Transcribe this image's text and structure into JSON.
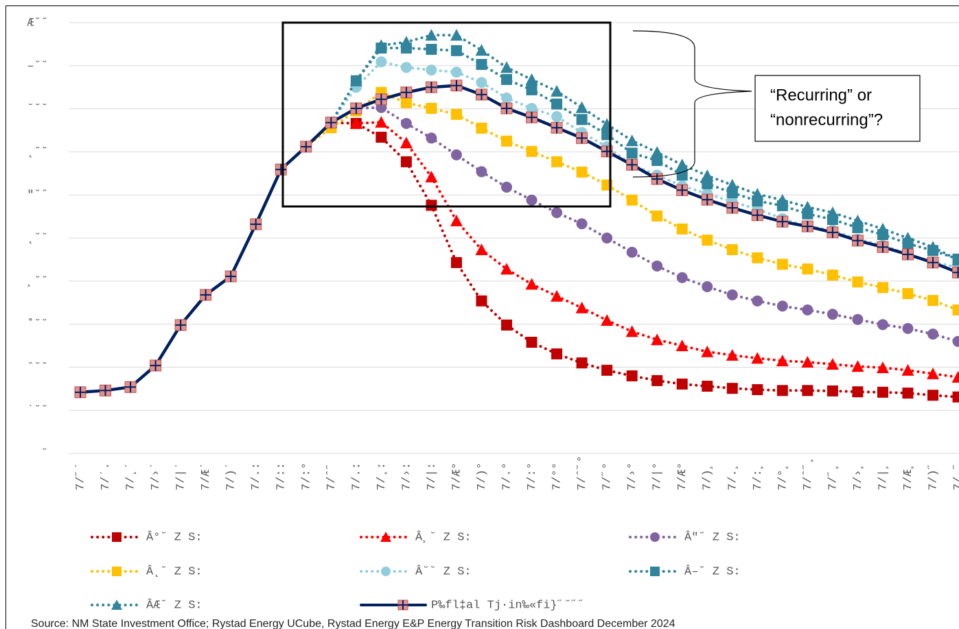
{
  "chart_data": {
    "type": "line",
    "annotation": [
      "“Recurring” or",
      "“nonrecurring”?"
    ],
    "source": "Source: NM State Investment Office; Rystad Energy UCube, Rystad Energy E&P Energy Transition Risk Dashboard December 2024",
    "categories": [
      "7/˝˙",
      "7/˙.",
      "7/˛˙",
      "7/›˙",
      "7/|˙",
      "7/Æ˙",
      "7/)˙",
      "7/.:",
      "7/::",
      "7/:°",
      "7/ˆ˝",
      "7/.:",
      "7/˛:",
      "7/›:",
      "7/|:",
      "7/Æ°",
      "7/)°",
      "7/.°",
      "7/:°",
      "7/°°",
      "7/ˆ˝°",
      "7/˝°",
      "7/›°",
      "7/|°",
      "7/Æ°",
      "7/)¸",
      "7/.¸",
      "7/:¸",
      "7/°¸",
      "7/ˆ˝¸",
      "7/˝¸",
      "7/›¸",
      "7/|¸",
      "7/Æ¸",
      "7/)˝",
      "7/.˝"
    ],
    "ylim": [
      0,
      1000
    ],
    "yticks": [
      {
        "value": 0,
        "label": "˘"
      },
      {
        "value": 100,
        "label": "˙˘˘"
      },
      {
        "value": 200,
        "label": "ˆ˘˘"
      },
      {
        "value": 300,
        "label": "˚˘˘"
      },
      {
        "value": 400,
        "label": "¸˘˘"
      },
      {
        "value": 500,
        "label": "˛˘˘"
      },
      {
        "value": 600,
        "label": "″˘˘"
      },
      {
        "value": 700,
        "label": "˛˘˘"
      },
      {
        "value": 800,
        "label": "˘˘˘"
      },
      {
        "value": 900,
        "label": "–˘˘"
      },
      {
        "value": 1000,
        "label": "Æ˘˘"
      }
    ],
    "grid": true,
    "series": [
      {
        "name": "Â°˘ Z S:",
        "color": "#c00000",
        "marker": "square",
        "dotted": true,
        "values": [
          null,
          null,
          null,
          null,
          null,
          null,
          null,
          null,
          null,
          null,
          768,
          766,
          734,
          677,
          576,
          443,
          354,
          298,
          258,
          231,
          210,
          193,
          180,
          169,
          161,
          156,
          151,
          148,
          146,
          146,
          145,
          143,
          142,
          140,
          135,
          131
        ]
      },
      {
        "name": "Â¸˘ Z S:",
        "color": "#ff0000",
        "marker": "triangle",
        "dotted": true,
        "values": [
          null,
          null,
          null,
          null,
          null,
          null,
          null,
          null,
          null,
          null,
          null,
          766,
          769,
          721,
          642,
          540,
          473,
          428,
          393,
          365,
          338,
          309,
          283,
          264,
          250,
          236,
          228,
          221,
          215,
          212,
          207,
          202,
          199,
          193,
          185,
          177
        ]
      },
      {
        "name": "Â″˘ Z S:",
        "color": "#8064a2",
        "marker": "circle",
        "dotted": true,
        "values": [
          null,
          null,
          null,
          null,
          null,
          null,
          null,
          null,
          null,
          null,
          null,
          801,
          803,
          766,
          732,
          693,
          654,
          618,
          588,
          559,
          533,
          500,
          467,
          435,
          408,
          387,
          368,
          354,
          342,
          333,
          323,
          311,
          299,
          290,
          277,
          260
        ]
      },
      {
        "name": "Â˛˘ Z S:",
        "color": "#ffc000",
        "marker": "square",
        "dotted": true,
        "values": [
          null,
          null,
          null,
          null,
          null,
          null,
          null,
          null,
          null,
          712,
          756,
          795,
          838,
          814,
          801,
          787,
          755,
          725,
          701,
          677,
          653,
          623,
          588,
          551,
          521,
          495,
          473,
          454,
          439,
          428,
          414,
          398,
          385,
          371,
          355,
          333
        ]
      },
      {
        "name": "Â˘˘ Z S:",
        "color": "#92cddc",
        "marker": "circle",
        "dotted": true,
        "values": [
          null,
          null,
          null,
          null,
          null,
          null,
          null,
          null,
          null,
          null,
          768,
          850,
          909,
          896,
          890,
          885,
          861,
          825,
          801,
          782,
          745,
          712,
          670,
          646,
          621,
          603,
          584,
          567,
          545,
          527,
          518,
          497,
          483,
          463,
          444,
          432
        ]
      },
      {
        "name": "Â–˘ Z S:",
        "color": "#31849b",
        "marker": "square",
        "dotted": true,
        "values": [
          null,
          null,
          null,
          null,
          null,
          null,
          null,
          null,
          null,
          null,
          768,
          865,
          941,
          941,
          938,
          935,
          903,
          868,
          844,
          811,
          775,
          740,
          697,
          680,
          646,
          626,
          605,
          586,
          575,
          556,
          543,
          524,
          508,
          487,
          471,
          451
        ]
      },
      {
        "name": "ÂÆ˘ Z S:",
        "color": "#31849b",
        "marker": "triangle",
        "dotted": true,
        "values": [
          null,
          null,
          null,
          null,
          null,
          null,
          null,
          null,
          null,
          null,
          768,
          865,
          947,
          955,
          971,
          971,
          936,
          896,
          868,
          841,
          803,
          764,
          726,
          699,
          670,
          645,
          623,
          602,
          588,
          572,
          559,
          540,
          521,
          500,
          479,
          449
        ]
      },
      {
        "name": "P‰fl‡al Tj·in‰«fi}˝˘˝˝",
        "color": "#002060",
        "marker": "cross-square",
        "dotted": false,
        "values": [
          142,
          146,
          154,
          204,
          298,
          368,
          411,
          532,
          659,
          712,
          768,
          801,
          822,
          838,
          850,
          854,
          833,
          801,
          780,
          756,
          732,
          701,
          670,
          637,
          611,
          589,
          570,
          553,
          538,
          527,
          513,
          494,
          479,
          462,
          443,
          420
        ]
      }
    ]
  }
}
